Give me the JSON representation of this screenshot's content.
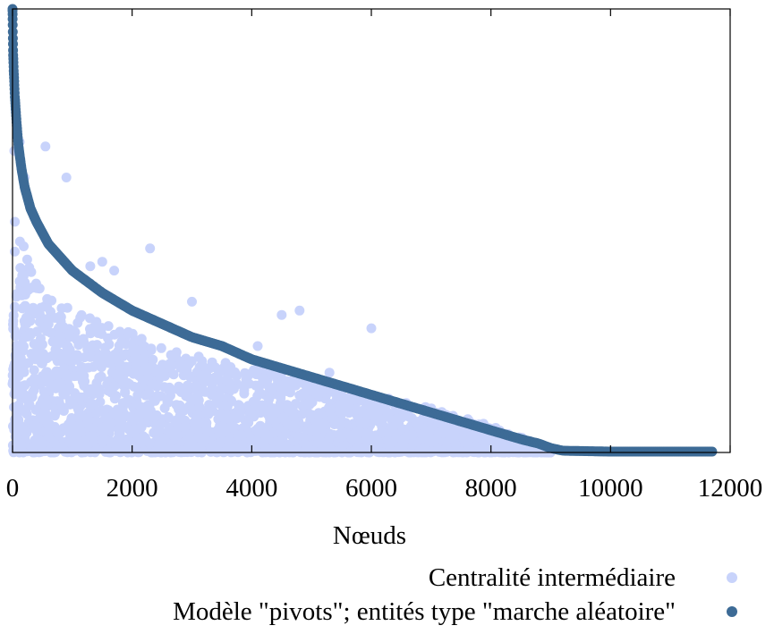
{
  "chart_data": {
    "type": "scatter",
    "xlabel": "Nœuds",
    "ylabel": "",
    "xlim": [
      0,
      12000
    ],
    "ylim": [
      0,
      1
    ],
    "x_ticks": [
      "0",
      "2000",
      "4000",
      "6000",
      "8000",
      "10000",
      "12000"
    ],
    "y_ticks": [],
    "grid": false,
    "legend_position": "bottom-right",
    "series": [
      {
        "name": "Centralité intermédiaire",
        "color": "#c8d3fb",
        "trend": [
          [
            0,
            0.62
          ],
          [
            100,
            0.5
          ],
          [
            300,
            0.42
          ],
          [
            600,
            0.36
          ],
          [
            1000,
            0.32
          ],
          [
            2000,
            0.27
          ],
          [
            3000,
            0.22
          ],
          [
            4000,
            0.19
          ],
          [
            5000,
            0.16
          ],
          [
            6000,
            0.13
          ],
          [
            7000,
            0.1
          ],
          [
            8000,
            0.06
          ],
          [
            8600,
            0.03
          ],
          [
            9000,
            0.0
          ]
        ],
        "outliers": [
          [
            30,
            0.68
          ],
          [
            120,
            0.7
          ],
          [
            200,
            0.62
          ],
          [
            550,
            0.69
          ],
          [
            900,
            0.62
          ],
          [
            1300,
            0.42
          ],
          [
            1500,
            0.43
          ],
          [
            1700,
            0.41
          ],
          [
            2300,
            0.46
          ],
          [
            3000,
            0.34
          ],
          [
            4100,
            0.24
          ],
          [
            4500,
            0.31
          ],
          [
            4800,
            0.32
          ],
          [
            5300,
            0.18
          ],
          [
            6000,
            0.28
          ],
          [
            8600,
            0.02
          ]
        ]
      },
      {
        "name": "Modèle \"pivots\"; entités type \"marche aléatoire\"",
        "color": "#3d6b96",
        "values": [
          [
            0,
            1.0
          ],
          [
            5,
            0.94
          ],
          [
            10,
            0.9
          ],
          [
            20,
            0.86
          ],
          [
            40,
            0.8
          ],
          [
            70,
            0.74
          ],
          [
            100,
            0.69
          ],
          [
            150,
            0.64
          ],
          [
            200,
            0.6
          ],
          [
            300,
            0.55
          ],
          [
            400,
            0.52
          ],
          [
            600,
            0.47
          ],
          [
            800,
            0.44
          ],
          [
            1000,
            0.41
          ],
          [
            1500,
            0.36
          ],
          [
            2000,
            0.32
          ],
          [
            2500,
            0.29
          ],
          [
            3000,
            0.26
          ],
          [
            3500,
            0.24
          ],
          [
            4000,
            0.21
          ],
          [
            4500,
            0.19
          ],
          [
            5000,
            0.17
          ],
          [
            5500,
            0.15
          ],
          [
            6000,
            0.13
          ],
          [
            6500,
            0.11
          ],
          [
            7000,
            0.09
          ],
          [
            7500,
            0.07
          ],
          [
            8000,
            0.05
          ],
          [
            8500,
            0.03
          ],
          [
            8800,
            0.02
          ],
          [
            9000,
            0.01
          ],
          [
            9200,
            0.004
          ],
          [
            10000,
            0.002
          ],
          [
            11000,
            0.002
          ],
          [
            11700,
            0.002
          ]
        ]
      }
    ]
  }
}
